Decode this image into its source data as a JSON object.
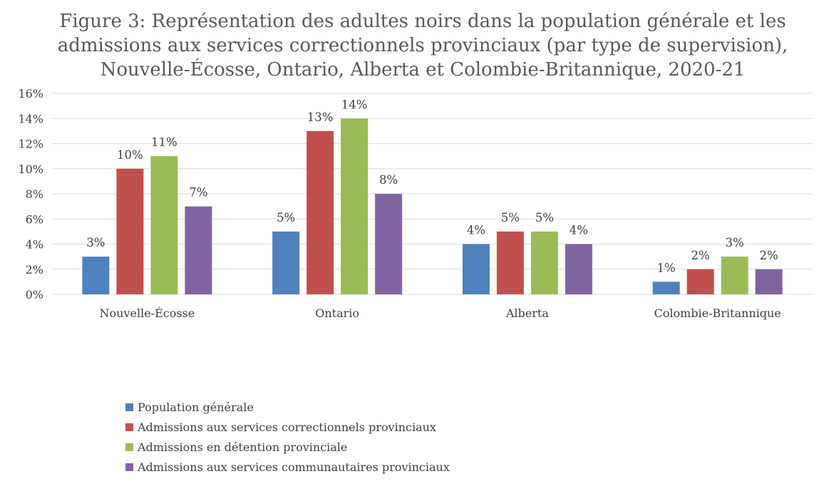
{
  "chart_data": {
    "type": "bar",
    "title_lines": [
      "Figure 3: Représentation des adultes noirs dans la population générale et les",
      "admissions aux services correctionnels provinciaux (par type de supervision),",
      "Nouvelle-Écosse, Ontario, Alberta et Colombie-Britannique, 2020-21"
    ],
    "categories": [
      "Nouvelle-Écosse",
      "Ontario",
      "Alberta",
      "Colombie-Britannique"
    ],
    "series": [
      {
        "name": "Population générale",
        "color": "#4f81bd",
        "values": [
          3,
          5,
          4,
          1
        ]
      },
      {
        "name": "Admissions aux services correctionnels provinciaux",
        "color": "#c0504d",
        "values": [
          10,
          13,
          5,
          2
        ]
      },
      {
        "name": "Admissions en détention provinciale",
        "color": "#9bbb59",
        "values": [
          11,
          14,
          5,
          3
        ]
      },
      {
        "name": "Admissions aux services communautaires provinciaux",
        "color": "#8064a2",
        "values": [
          7,
          8,
          4,
          2
        ]
      }
    ],
    "ylim": [
      0,
      16
    ],
    "yticks": [
      0,
      2,
      4,
      6,
      8,
      10,
      12,
      14,
      16
    ],
    "ytick_labels": [
      "0%",
      "2%",
      "4%",
      "6%",
      "8%",
      "10%",
      "12%",
      "14%",
      "16%"
    ],
    "data_label_suffix": "%",
    "grid": true,
    "legend_position": "bottom-left"
  }
}
